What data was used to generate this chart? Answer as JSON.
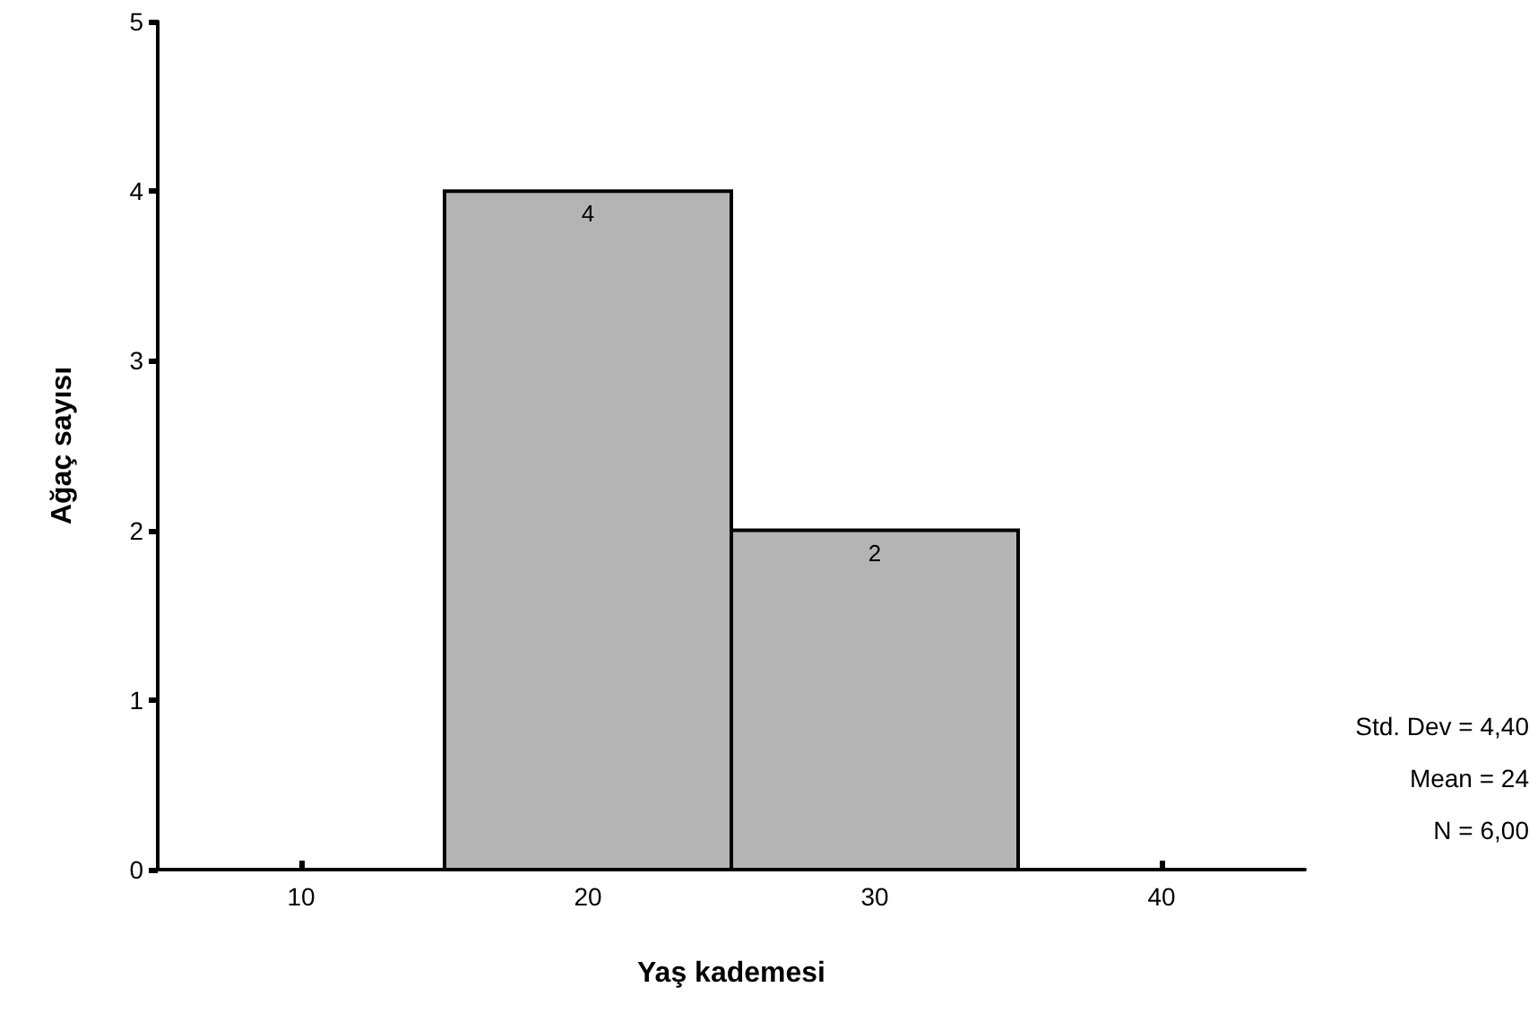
{
  "chart_data": {
    "type": "histogram",
    "xlabel": "Yaş kademesi",
    "ylabel": "Ağaç sayısı",
    "bins": [
      15,
      25,
      35
    ],
    "values": [
      4,
      2
    ],
    "color": "#b4b4b4",
    "xlim": [
      5,
      45
    ],
    "xticks": [
      10,
      20,
      30,
      40
    ],
    "ylim": [
      0,
      5
    ],
    "yticks": [
      0,
      1,
      2,
      3,
      4,
      5
    ],
    "grid": false,
    "data_labels": true,
    "annotations": [
      "Std. Dev = 4,40",
      "Mean = 24",
      "N = 6,00"
    ]
  }
}
